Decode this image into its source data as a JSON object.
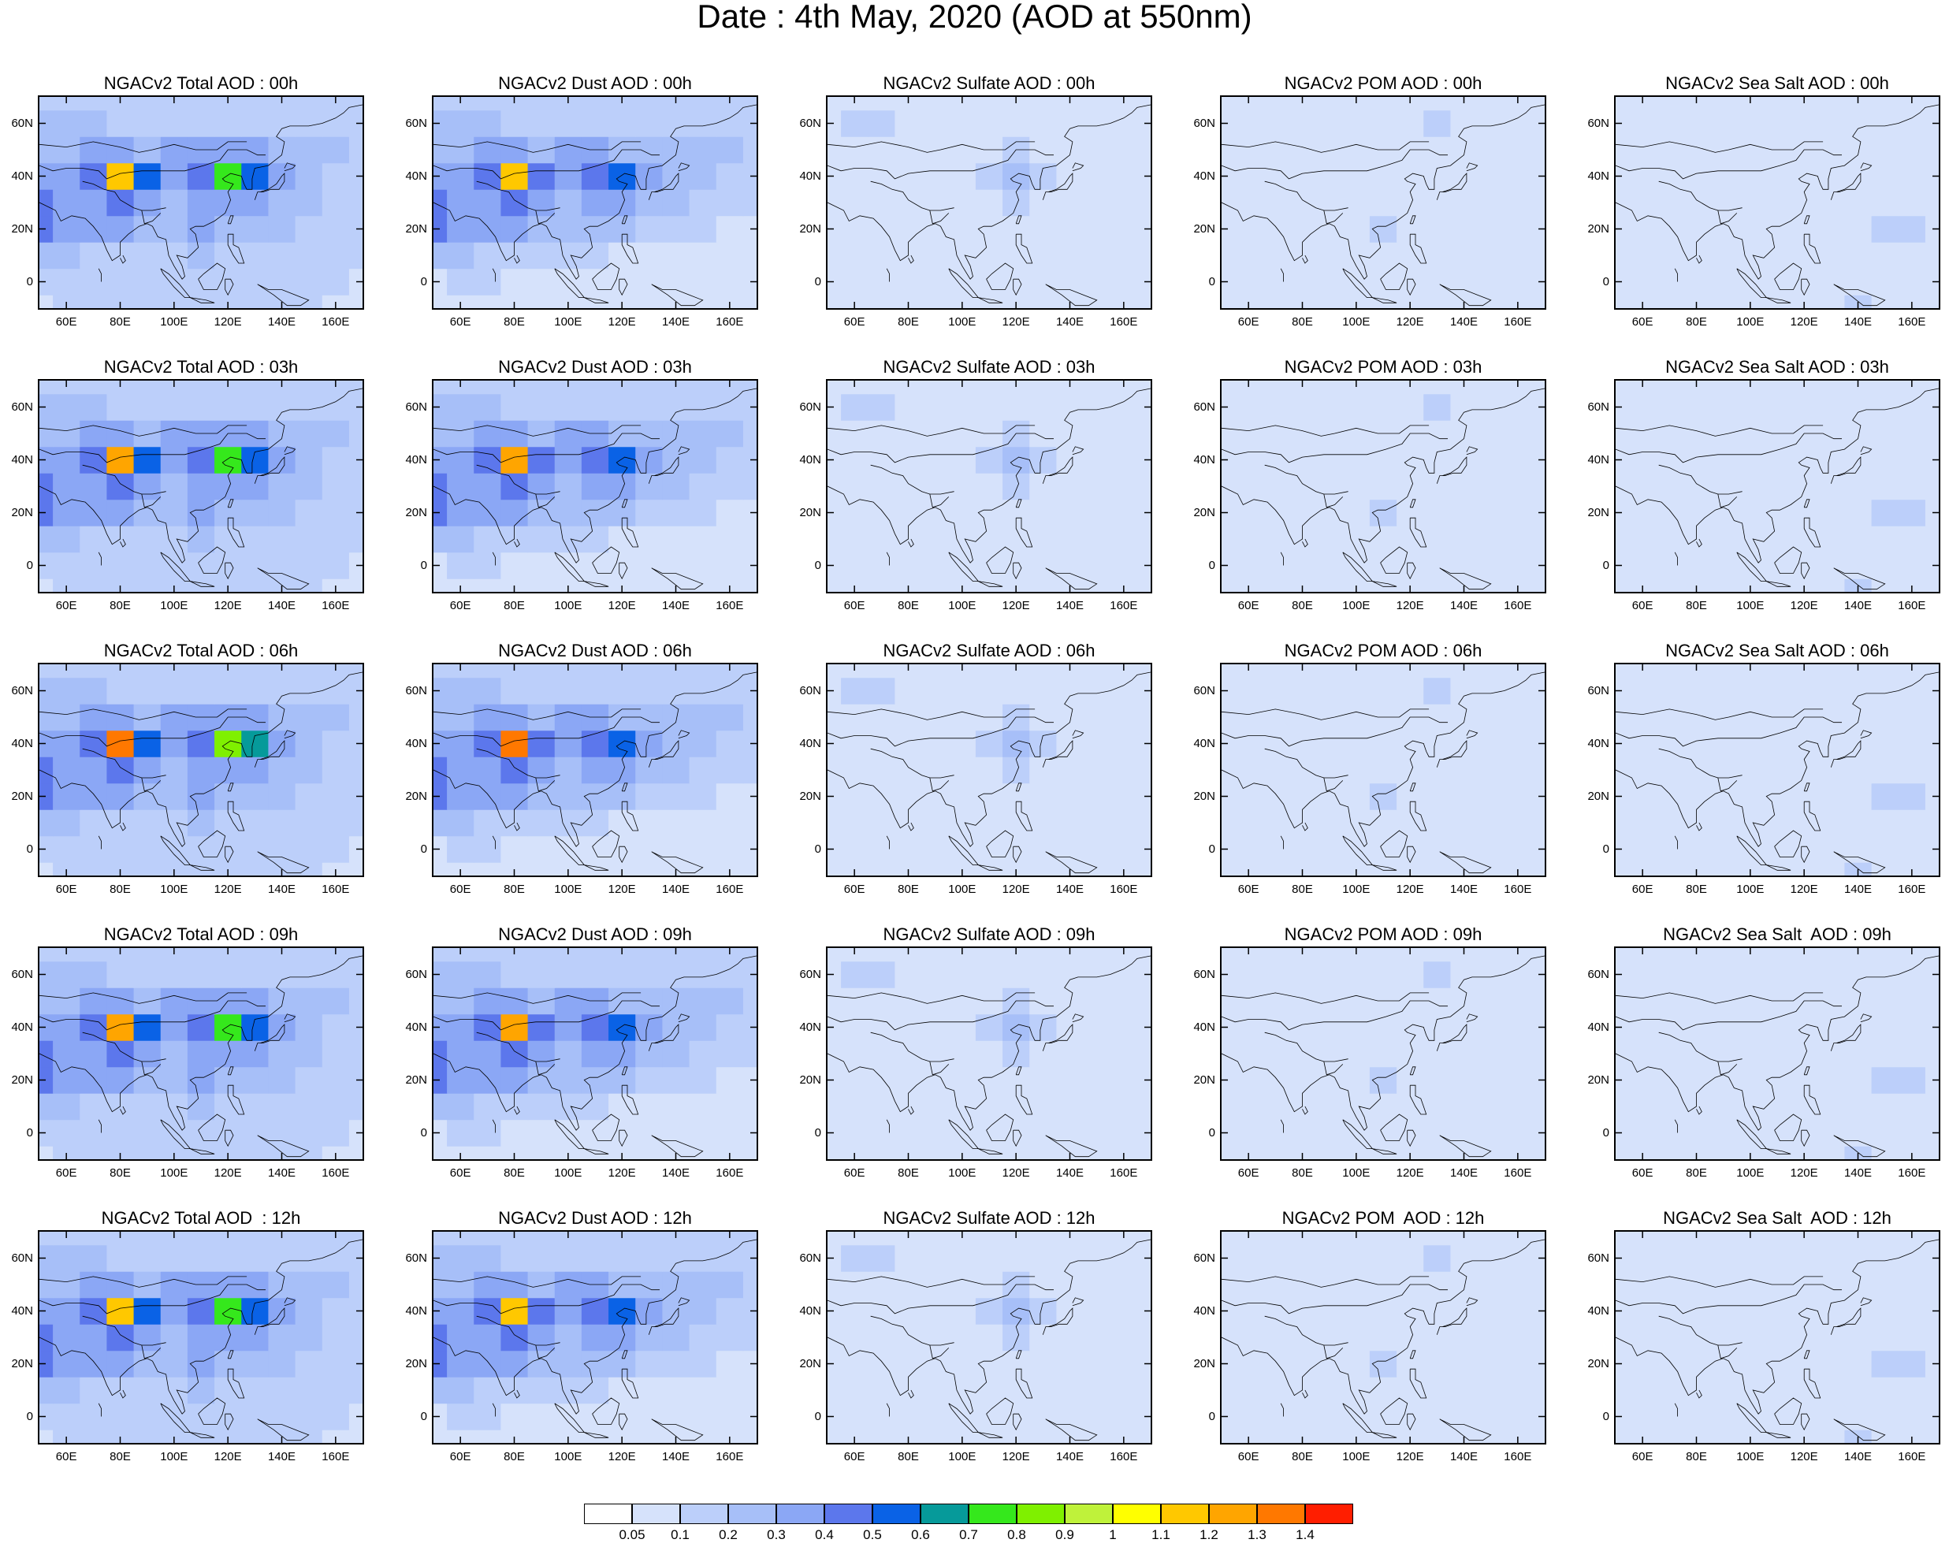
{
  "figure": {
    "title": "Date : 4th May, 2020 (AOD at 550nm)"
  },
  "panels": [
    {
      "title": "NGACv2 Total AOD : 00h",
      "species": "total",
      "hour": 0
    },
    {
      "title": "NGACv2 Dust AOD : 00h",
      "species": "dust",
      "hour": 0
    },
    {
      "title": "NGACv2 Sulfate AOD : 00h",
      "species": "sulfate",
      "hour": 0
    },
    {
      "title": "NGACv2 POM AOD : 00h",
      "species": "pom",
      "hour": 0
    },
    {
      "title": "NGACv2 Sea Salt AOD : 00h",
      "species": "seasalt",
      "hour": 0
    },
    {
      "title": "NGACv2 Total AOD : 03h",
      "species": "total",
      "hour": 3
    },
    {
      "title": "NGACv2 Dust AOD : 03h",
      "species": "dust",
      "hour": 3
    },
    {
      "title": "NGACv2 Sulfate AOD : 03h",
      "species": "sulfate",
      "hour": 3
    },
    {
      "title": "NGACv2 POM AOD : 03h",
      "species": "pom",
      "hour": 3
    },
    {
      "title": "NGACv2 Sea Salt AOD : 03h",
      "species": "seasalt",
      "hour": 3
    },
    {
      "title": "NGACv2 Total AOD : 06h",
      "species": "total",
      "hour": 6
    },
    {
      "title": "NGACv2 Dust AOD : 06h",
      "species": "dust",
      "hour": 6
    },
    {
      "title": "NGACv2 Sulfate AOD : 06h",
      "species": "sulfate",
      "hour": 6
    },
    {
      "title": "NGACv2 POM AOD : 06h",
      "species": "pom",
      "hour": 6
    },
    {
      "title": "NGACv2 Sea Salt AOD : 06h",
      "species": "seasalt",
      "hour": 6
    },
    {
      "title": "NGACv2 Total AOD : 09h",
      "species": "total",
      "hour": 9
    },
    {
      "title": "NGACv2 Dust AOD : 09h",
      "species": "dust",
      "hour": 9
    },
    {
      "title": "NGACv2 Sulfate AOD : 09h",
      "species": "sulfate",
      "hour": 9
    },
    {
      "title": "NGACv2 POM AOD : 09h",
      "species": "pom",
      "hour": 9
    },
    {
      "title": "NGACv2 Sea Salt  AOD : 09h",
      "species": "seasalt",
      "hour": 9
    },
    {
      "title": "NGACv2 Total AOD  : 12h",
      "species": "total",
      "hour": 12
    },
    {
      "title": "NGACv2 Dust AOD : 12h",
      "species": "dust",
      "hour": 12
    },
    {
      "title": "NGACv2 Sulfate AOD : 12h",
      "species": "sulfate",
      "hour": 12
    },
    {
      "title": "NGACv2 POM  AOD : 12h",
      "species": "pom",
      "hour": 12
    },
    {
      "title": "NGACv2 Sea Salt  AOD : 12h",
      "species": "seasalt",
      "hour": 12
    }
  ],
  "axes": {
    "lat_ticks": [
      {
        "value": 60,
        "label": "60N"
      },
      {
        "value": 40,
        "label": "40N"
      },
      {
        "value": 20,
        "label": "20N"
      },
      {
        "value": 0,
        "label": "0"
      }
    ],
    "lon_ticks": [
      {
        "value": 60,
        "label": "60E"
      },
      {
        "value": 80,
        "label": "80E"
      },
      {
        "value": 100,
        "label": "100E"
      },
      {
        "value": 120,
        "label": "120E"
      },
      {
        "value": 140,
        "label": "140E"
      },
      {
        "value": 160,
        "label": "160E"
      }
    ],
    "lon_range": [
      50,
      170
    ],
    "lat_range": [
      -10,
      70
    ]
  },
  "colorbar": {
    "labels": [
      "0.05",
      "0.1",
      "0.2",
      "0.3",
      "0.4",
      "0.5",
      "0.6",
      "0.7",
      "0.8",
      "0.9",
      "1",
      "1.1",
      "1.2",
      "1.3",
      "1.4"
    ],
    "colors": [
      "#ffffff",
      "#d6e2fb",
      "#bccffa",
      "#a7bff8",
      "#8ba7f5",
      "#5c77ec",
      "#0a62e6",
      "#069a9a",
      "#35e81c",
      "#7ff000",
      "#bff23a",
      "#ffff00",
      "#ffc800",
      "#ffa500",
      "#ff7800",
      "#ff1e00"
    ]
  },
  "chart_data": {
    "type": "heatmap",
    "title": "Date : 4th May, 2020 (AOD at 550nm)",
    "panel_rows": [
      "00h",
      "03h",
      "06h",
      "09h",
      "12h"
    ],
    "panel_columns": [
      "Total AOD",
      "Dust AOD",
      "Sulfate AOD",
      "POM AOD",
      "Sea Salt AOD"
    ],
    "grid": {
      "lons": [
        50,
        60,
        70,
        80,
        90,
        100,
        110,
        120,
        130,
        140,
        150,
        160,
        170
      ],
      "lats": [
        -10,
        0,
        10,
        20,
        30,
        40,
        50,
        60,
        70
      ]
    },
    "fields": {
      "total": [
        [
          0.05,
          0.1,
          0.1,
          0.1,
          0.1,
          0.1,
          0.1,
          0.1,
          0.1,
          0.1,
          0.1,
          0.05,
          0.05
        ],
        [
          0.1,
          0.1,
          0.1,
          0.1,
          0.1,
          0.1,
          0.1,
          0.1,
          0.1,
          0.1,
          0.1,
          0.1,
          0.05
        ],
        [
          0.2,
          0.2,
          0.1,
          0.1,
          0.1,
          0.1,
          0.2,
          0.1,
          0.1,
          0.1,
          0.1,
          0.1,
          0.1
        ],
        [
          0.4,
          0.3,
          0.3,
          0.3,
          0.2,
          0.2,
          0.3,
          0.2,
          0.2,
          0.2,
          0.1,
          0.1,
          0.1
        ],
        [
          0.4,
          0.3,
          0.3,
          0.4,
          0.3,
          0.2,
          0.3,
          0.3,
          0.3,
          0.2,
          0.2,
          0.1,
          0.1
        ],
        [
          0.3,
          0.3,
          0.4,
          1.3,
          0.5,
          0.3,
          0.4,
          0.8,
          0.6,
          0.3,
          0.2,
          0.1,
          0.1
        ],
        [
          0.2,
          0.2,
          0.3,
          0.3,
          0.2,
          0.3,
          0.3,
          0.3,
          0.3,
          0.2,
          0.2,
          0.2,
          0.1
        ],
        [
          0.2,
          0.2,
          0.2,
          0.1,
          0.1,
          0.1,
          0.1,
          0.1,
          0.1,
          0.1,
          0.1,
          0.1,
          0.1
        ],
        [
          0.1,
          0.1,
          0.1,
          0.1,
          0.1,
          0.1,
          0.1,
          0.1,
          0.1,
          0.1,
          0.1,
          0.1,
          0.1
        ]
      ],
      "dust": [
        [
          0.05,
          0.05,
          0.05,
          0.05,
          0.05,
          0.05,
          0.05,
          0.05,
          0.05,
          0.05,
          0.05,
          0.05,
          0.05
        ],
        [
          0.05,
          0.1,
          0.1,
          0.05,
          0.05,
          0.05,
          0.05,
          0.05,
          0.05,
          0.05,
          0.05,
          0.05,
          0.05
        ],
        [
          0.2,
          0.2,
          0.1,
          0.1,
          0.1,
          0.1,
          0.1,
          0.05,
          0.05,
          0.05,
          0.05,
          0.05,
          0.05
        ],
        [
          0.4,
          0.3,
          0.3,
          0.3,
          0.2,
          0.2,
          0.2,
          0.2,
          0.1,
          0.1,
          0.1,
          0.05,
          0.05
        ],
        [
          0.4,
          0.3,
          0.3,
          0.4,
          0.3,
          0.2,
          0.3,
          0.3,
          0.2,
          0.2,
          0.1,
          0.1,
          0.1
        ],
        [
          0.3,
          0.3,
          0.4,
          1.3,
          0.4,
          0.3,
          0.4,
          0.5,
          0.3,
          0.2,
          0.2,
          0.1,
          0.1
        ],
        [
          0.2,
          0.2,
          0.3,
          0.3,
          0.2,
          0.3,
          0.3,
          0.2,
          0.2,
          0.2,
          0.2,
          0.2,
          0.1
        ],
        [
          0.2,
          0.2,
          0.2,
          0.1,
          0.1,
          0.1,
          0.1,
          0.1,
          0.1,
          0.1,
          0.1,
          0.1,
          0.1
        ],
        [
          0.1,
          0.1,
          0.1,
          0.1,
          0.1,
          0.1,
          0.1,
          0.1,
          0.1,
          0.1,
          0.1,
          0.1,
          0.1
        ]
      ],
      "sulfate": [
        [
          0.05,
          0.05,
          0.05,
          0.05,
          0.05,
          0.05,
          0.05,
          0.05,
          0.05,
          0.05,
          0.05,
          0.05,
          0.05
        ],
        [
          0.05,
          0.05,
          0.05,
          0.05,
          0.05,
          0.05,
          0.05,
          0.05,
          0.05,
          0.05,
          0.05,
          0.05,
          0.05
        ],
        [
          0.05,
          0.05,
          0.05,
          0.05,
          0.05,
          0.05,
          0.05,
          0.05,
          0.05,
          0.05,
          0.05,
          0.05,
          0.05
        ],
        [
          0.05,
          0.05,
          0.05,
          0.05,
          0.05,
          0.05,
          0.05,
          0.05,
          0.05,
          0.05,
          0.05,
          0.05,
          0.05
        ],
        [
          0.05,
          0.05,
          0.05,
          0.05,
          0.05,
          0.05,
          0.05,
          0.1,
          0.05,
          0.05,
          0.05,
          0.05,
          0.05
        ],
        [
          0.05,
          0.05,
          0.05,
          0.05,
          0.05,
          0.05,
          0.1,
          0.2,
          0.1,
          0.05,
          0.05,
          0.05,
          0.05
        ],
        [
          0.05,
          0.05,
          0.05,
          0.05,
          0.05,
          0.05,
          0.05,
          0.1,
          0.05,
          0.05,
          0.05,
          0.05,
          0.05
        ],
        [
          0.05,
          0.1,
          0.1,
          0.05,
          0.05,
          0.05,
          0.05,
          0.05,
          0.05,
          0.05,
          0.05,
          0.05,
          0.05
        ],
        [
          0.05,
          0.05,
          0.05,
          0.05,
          0.05,
          0.05,
          0.05,
          0.05,
          0.05,
          0.05,
          0.05,
          0.05,
          0.05
        ]
      ],
      "pom": [
        [
          0.05,
          0.05,
          0.05,
          0.05,
          0.05,
          0.05,
          0.05,
          0.05,
          0.05,
          0.05,
          0.05,
          0.05,
          0.05
        ],
        [
          0.05,
          0.05,
          0.05,
          0.05,
          0.05,
          0.05,
          0.05,
          0.05,
          0.05,
          0.05,
          0.05,
          0.05,
          0.05
        ],
        [
          0.05,
          0.05,
          0.05,
          0.05,
          0.05,
          0.05,
          0.05,
          0.05,
          0.05,
          0.05,
          0.05,
          0.05,
          0.05
        ],
        [
          0.05,
          0.05,
          0.05,
          0.05,
          0.05,
          0.05,
          0.1,
          0.05,
          0.05,
          0.05,
          0.05,
          0.05,
          0.05
        ],
        [
          0.05,
          0.05,
          0.05,
          0.05,
          0.05,
          0.05,
          0.05,
          0.05,
          0.05,
          0.05,
          0.05,
          0.05,
          0.05
        ],
        [
          0.05,
          0.05,
          0.05,
          0.05,
          0.05,
          0.05,
          0.05,
          0.05,
          0.05,
          0.05,
          0.05,
          0.05,
          0.05
        ],
        [
          0.05,
          0.05,
          0.05,
          0.05,
          0.05,
          0.05,
          0.05,
          0.05,
          0.05,
          0.05,
          0.05,
          0.05,
          0.05
        ],
        [
          0.05,
          0.05,
          0.05,
          0.05,
          0.05,
          0.05,
          0.05,
          0.05,
          0.1,
          0.05,
          0.05,
          0.05,
          0.05
        ],
        [
          0.05,
          0.05,
          0.05,
          0.05,
          0.05,
          0.05,
          0.05,
          0.05,
          0.05,
          0.05,
          0.05,
          0.05,
          0.05
        ]
      ],
      "seasalt": [
        [
          0.05,
          0.05,
          0.05,
          0.05,
          0.05,
          0.05,
          0.05,
          0.05,
          0.05,
          0.1,
          0.05,
          0.05,
          0.05
        ],
        [
          0.05,
          0.05,
          0.05,
          0.05,
          0.05,
          0.05,
          0.05,
          0.05,
          0.05,
          0.05,
          0.05,
          0.05,
          0.05
        ],
        [
          0.05,
          0.05,
          0.05,
          0.05,
          0.05,
          0.05,
          0.05,
          0.05,
          0.05,
          0.05,
          0.05,
          0.05,
          0.05
        ],
        [
          0.05,
          0.05,
          0.05,
          0.05,
          0.05,
          0.05,
          0.05,
          0.05,
          0.05,
          0.05,
          0.1,
          0.1,
          0.05
        ],
        [
          0.05,
          0.05,
          0.05,
          0.05,
          0.05,
          0.05,
          0.05,
          0.05,
          0.05,
          0.05,
          0.05,
          0.05,
          0.05
        ],
        [
          0.05,
          0.05,
          0.05,
          0.05,
          0.05,
          0.05,
          0.05,
          0.05,
          0.05,
          0.05,
          0.05,
          0.05,
          0.05
        ],
        [
          0.05,
          0.05,
          0.05,
          0.05,
          0.05,
          0.05,
          0.05,
          0.05,
          0.05,
          0.05,
          0.05,
          0.05,
          0.05
        ],
        [
          0.05,
          0.05,
          0.05,
          0.05,
          0.05,
          0.05,
          0.05,
          0.05,
          0.05,
          0.05,
          0.05,
          0.05,
          0.05
        ],
        [
          0.05,
          0.05,
          0.05,
          0.05,
          0.05,
          0.05,
          0.05,
          0.05,
          0.05,
          0.05,
          0.05,
          0.05,
          0.05
        ]
      ]
    },
    "legend": "bottom"
  }
}
